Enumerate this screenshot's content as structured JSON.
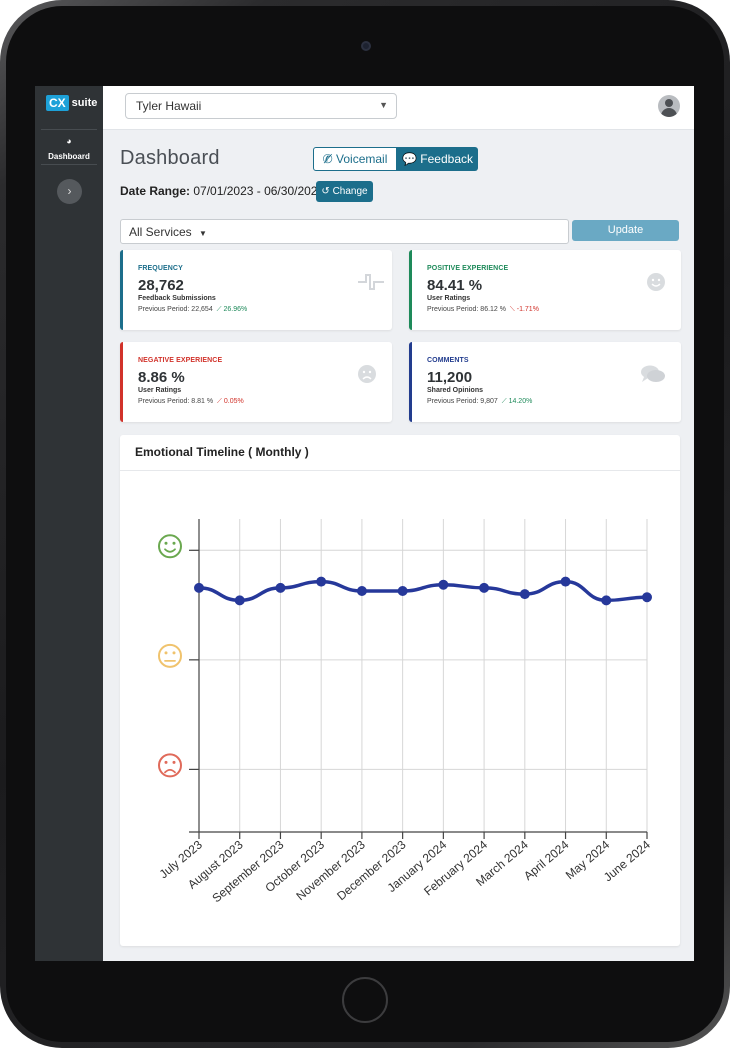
{
  "app": {
    "logo_badge": "CX",
    "logo_text": "suite"
  },
  "sidebar": {
    "items": [
      {
        "label": "Dashboard",
        "icon": "gauge-icon"
      }
    ],
    "toggle_icon": "chevron-right-icon"
  },
  "topbar": {
    "location_select": "Tyler Hawaii"
  },
  "page": {
    "title": "Dashboard"
  },
  "mode_tabs": [
    {
      "label": "Voicemail",
      "icon": "phone-slash-icon",
      "active": false
    },
    {
      "label": "Feedback",
      "icon": "comments-icon",
      "active": true
    }
  ],
  "date_range": {
    "label": "Date Range:",
    "value": "07/01/2023 - 06/30/2024",
    "change_label": "Change"
  },
  "filter": {
    "services": "All Services",
    "update_label": "Update"
  },
  "cards": [
    {
      "label": "FREQUENCY",
      "value": "28,762",
      "subtitle": "Feedback Submissions",
      "previous": "Previous Period: 22,654",
      "change": "26.96%",
      "trend": "up",
      "accent": "#1c6e8b",
      "icon": "pulse-icon"
    },
    {
      "label": "POSITIVE EXPERIENCE",
      "value": "84.41 %",
      "subtitle": "User Ratings",
      "previous": "Previous Period: 86.12 %",
      "change": "-1.71%",
      "trend": "down",
      "accent": "#1e8a5a",
      "icon": "smile-icon"
    },
    {
      "label": "NEGATIVE EXPERIENCE",
      "value": "8.86 %",
      "subtitle": "User Ratings",
      "previous": "Previous Period: 8.81 %",
      "change": "0.05%",
      "trend": "up-bad",
      "accent": "#d1322a",
      "icon": "frown-icon"
    },
    {
      "label": "COMMENTS",
      "value": "11,200",
      "subtitle": "Shared Opinions",
      "previous": "Previous Period: 9,807",
      "change": "14.20%",
      "trend": "up",
      "accent": "#223c8e",
      "icon": "comments-icon"
    }
  ],
  "chart_data": {
    "type": "line",
    "title": "Emotional Timeline ( Monthly )",
    "categories": [
      "July 2023",
      "August 2023",
      "September 2023",
      "October 2023",
      "November 2023",
      "December 2023",
      "January 2024",
      "February 2024",
      "March 2024",
      "April 2024",
      "May 2024",
      "June 2024"
    ],
    "series": [
      {
        "values": [
          0.78,
          0.74,
          0.78,
          0.8,
          0.77,
          0.77,
          0.79,
          0.78,
          0.76,
          0.8,
          0.74,
          0.75
        ],
        "color": "#26389a"
      }
    ],
    "y_scale_icons": [
      "smile-face",
      "neutral-face",
      "frown-face"
    ],
    "grid": true
  }
}
